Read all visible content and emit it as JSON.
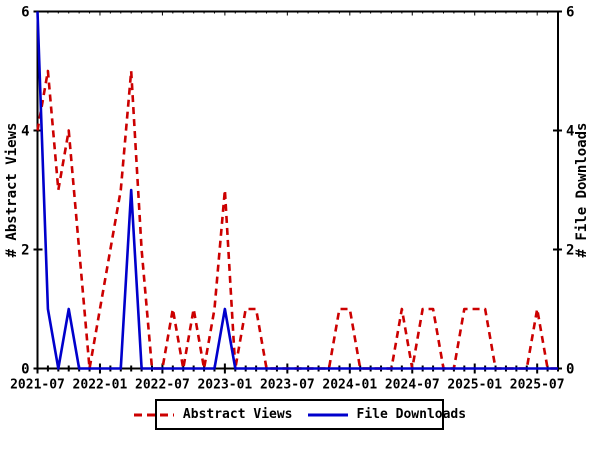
{
  "chart_data": {
    "type": "line",
    "title": "",
    "months": [
      "2021-07",
      "2021-08",
      "2021-09",
      "2021-10",
      "2021-11",
      "2021-12",
      "2022-01",
      "2022-02",
      "2022-03",
      "2022-04",
      "2022-05",
      "2022-06",
      "2022-07",
      "2022-08",
      "2022-09",
      "2022-10",
      "2022-11",
      "2022-12",
      "2023-01",
      "2023-02",
      "2023-03",
      "2023-04",
      "2023-05",
      "2023-06",
      "2023-07",
      "2023-08",
      "2023-09",
      "2023-10",
      "2023-11",
      "2023-12",
      "2024-01",
      "2024-02",
      "2024-03",
      "2024-04",
      "2024-05",
      "2024-06",
      "2024-07",
      "2024-08",
      "2024-09",
      "2024-10",
      "2024-11",
      "2024-12",
      "2025-01",
      "2025-02",
      "2025-03",
      "2025-04",
      "2025-05",
      "2025-06",
      "2025-07",
      "2025-08",
      "2025-09"
    ],
    "series": [
      {
        "name": "Abstract Views",
        "color": "#cc0000",
        "style": "dashed",
        "axis": "left",
        "values": [
          4,
          5,
          3,
          4,
          2,
          0,
          1,
          2,
          3,
          5,
          2,
          0,
          0,
          1,
          0,
          1,
          0,
          1,
          3,
          0,
          1,
          1,
          0,
          0,
          0,
          0,
          0,
          0,
          0,
          1,
          1,
          0,
          0,
          0,
          0,
          1,
          0,
          1,
          1,
          0,
          0,
          1,
          1,
          1,
          0,
          0,
          0,
          0,
          1,
          0,
          0
        ]
      },
      {
        "name": "File Downloads",
        "color": "#0000cc",
        "style": "solid",
        "axis": "right",
        "values": [
          6,
          1,
          0,
          1,
          0,
          0,
          0,
          0,
          0,
          3,
          0,
          0,
          0,
          0,
          0,
          0,
          0,
          0,
          1,
          0,
          0,
          0,
          0,
          0,
          0,
          0,
          0,
          0,
          0,
          0,
          0,
          0,
          0,
          0,
          0,
          0,
          0,
          0,
          0,
          0,
          0,
          0,
          0,
          0,
          0,
          0,
          0,
          0,
          0,
          0,
          0
        ]
      }
    ],
    "ylabel_left": "# Abstract Views",
    "ylabel_right": "# File Downloads",
    "ylim": [
      0,
      6
    ],
    "yticks": [
      "0",
      "2",
      "4",
      "6"
    ],
    "xtick_labels": [
      "2021-07",
      "2022-01",
      "2022-07",
      "2023-01",
      "2023-07",
      "2024-01",
      "2024-07",
      "2025-01",
      "2025-07"
    ],
    "xtick_every": 6,
    "grid": false,
    "legend_position": "bottom-center",
    "axis_color": "#000000"
  }
}
